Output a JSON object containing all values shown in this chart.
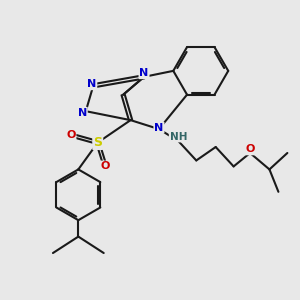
{
  "bg_color": "#e8e8e8",
  "bond_color": "#1a1a1a",
  "bond_width": 1.5,
  "atom_colors": {
    "N": "#0000cc",
    "O": "#cc0000",
    "S": "#cccc00",
    "H": "#336666",
    "C": "#1a1a1a"
  },
  "figsize": [
    3.0,
    3.0
  ],
  "dpi": 100,
  "xlim": [
    0,
    10
  ],
  "ylim": [
    0,
    10
  ]
}
